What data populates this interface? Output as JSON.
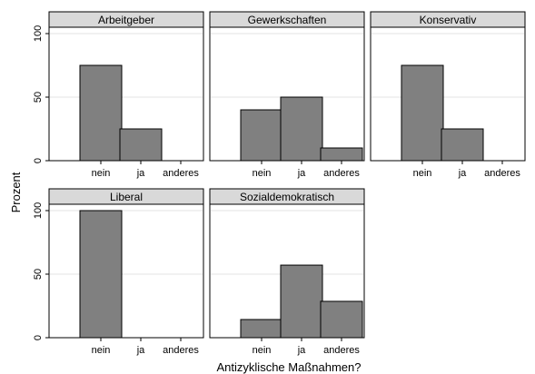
{
  "chart_data": {
    "type": "bar",
    "ylabel": "Prozent",
    "xlabel": "Antizyklische Maßnahmen?",
    "categories": [
      "nein",
      "ja",
      "anderes"
    ],
    "ylim": [
      0,
      100
    ],
    "yticks": [
      0,
      50,
      100
    ],
    "grid": true,
    "colors": {
      "bar": "#808080",
      "strip": "#d9d9d9",
      "grid": "#e3e3e3"
    },
    "panels": [
      {
        "title": "Arbeitgeber",
        "values": [
          75,
          25,
          0
        ]
      },
      {
        "title": "Gewerkschaften",
        "values": [
          40,
          50,
          10
        ]
      },
      {
        "title": "Konservativ",
        "values": [
          75,
          25,
          0
        ]
      },
      {
        "title": "Liberal",
        "values": [
          100,
          0,
          0
        ]
      },
      {
        "title": "Sozialdemokratisch",
        "values": [
          14.3,
          57.1,
          28.6
        ]
      }
    ]
  }
}
